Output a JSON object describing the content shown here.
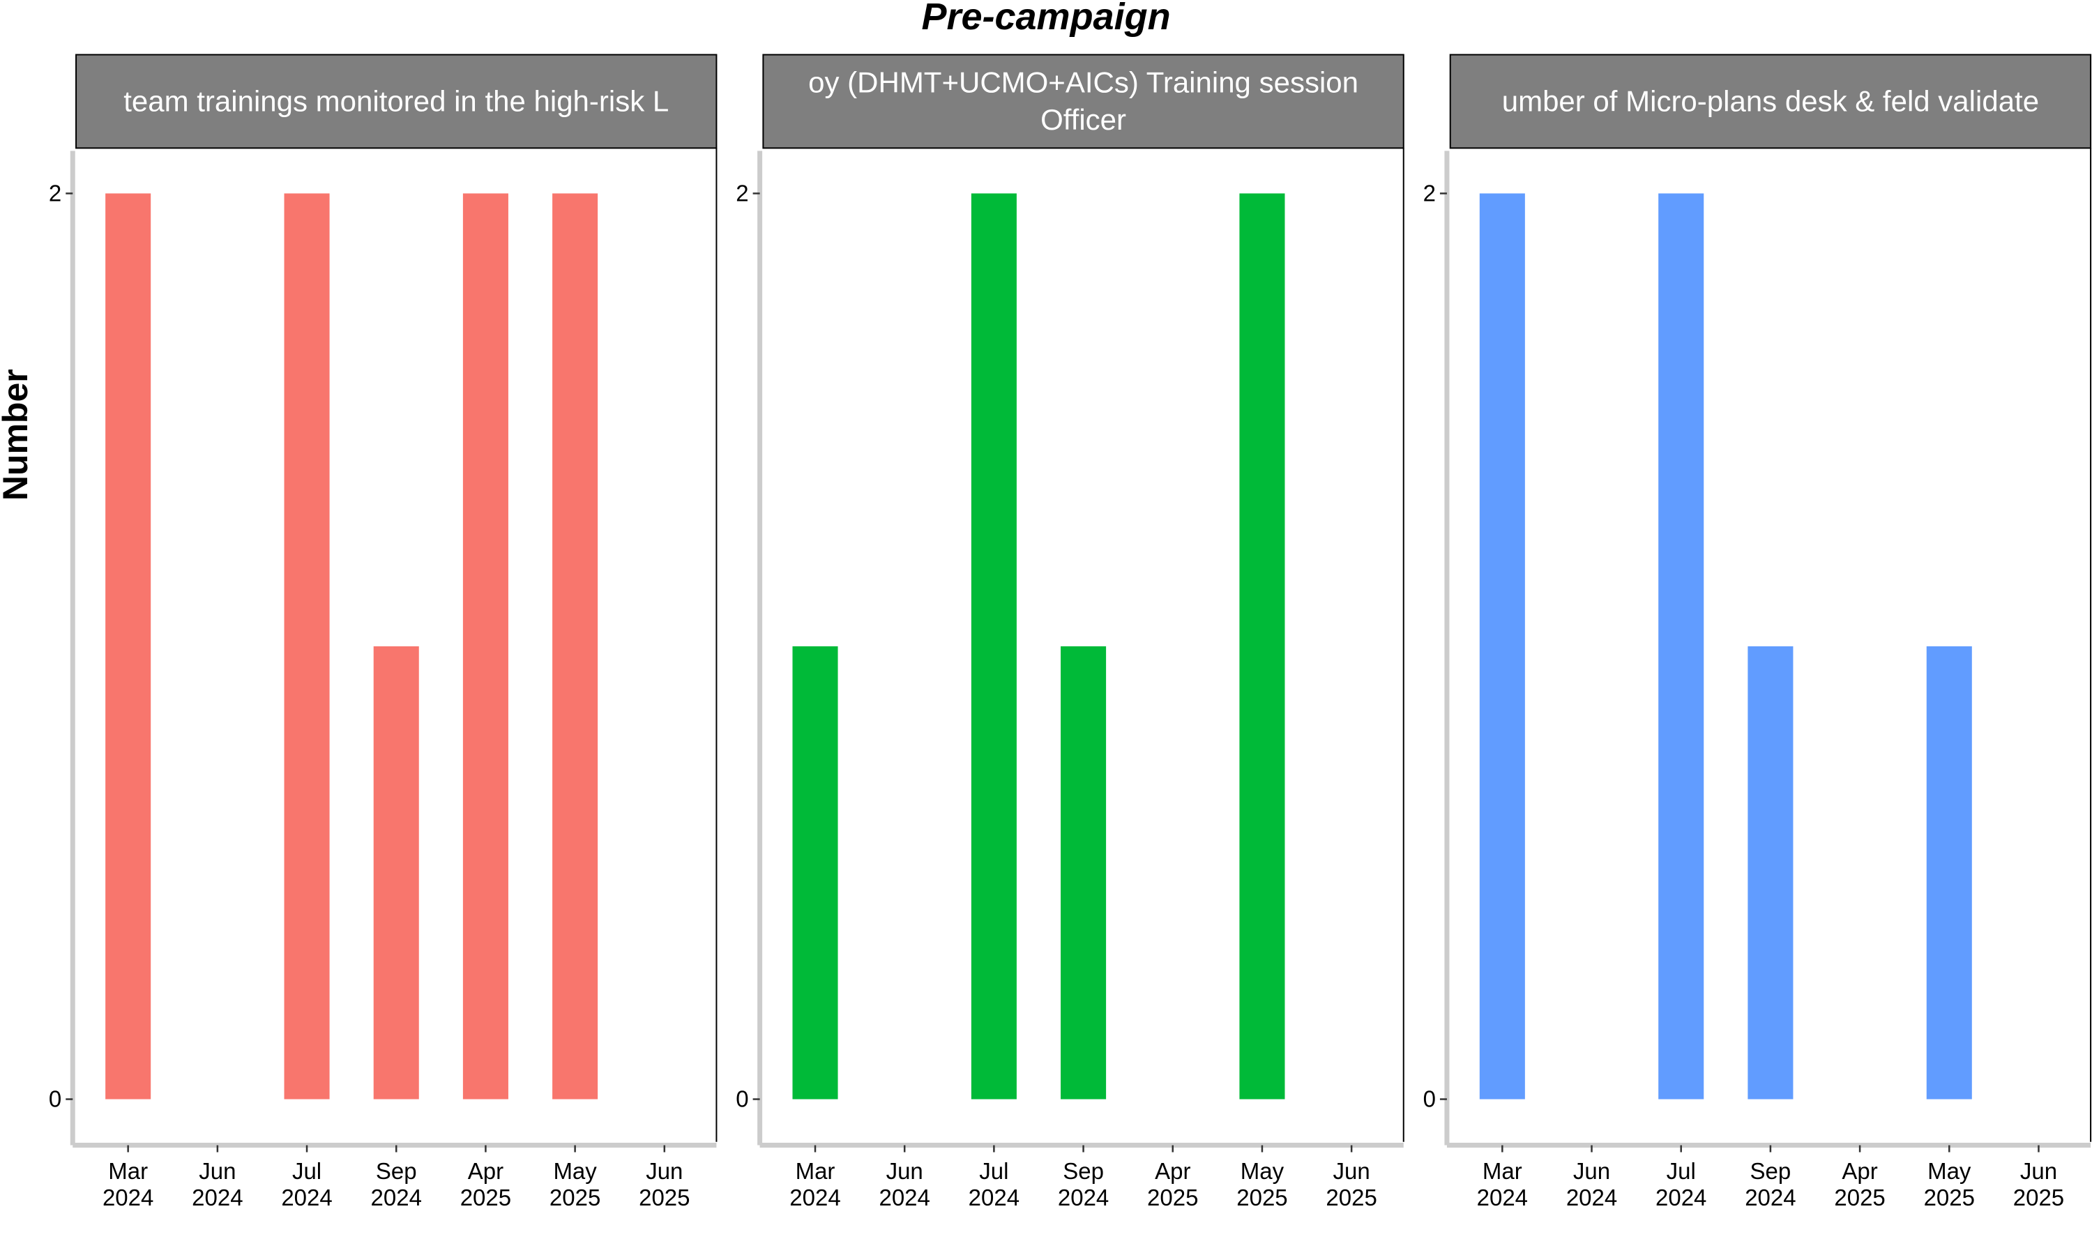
{
  "chart_data": {
    "type": "bar",
    "title": "Pre-campaign",
    "ylabel": "Number",
    "xlabel": "",
    "ylim": [
      0,
      2
    ],
    "y_ticks": [
      "0",
      "2"
    ],
    "categories": [
      [
        "Mar",
        "2024"
      ],
      [
        "Jun",
        "2024"
      ],
      [
        "Jul",
        "2024"
      ],
      [
        "Sep",
        "2024"
      ],
      [
        "Apr",
        "2025"
      ],
      [
        "May",
        "2025"
      ],
      [
        "Jun",
        "2025"
      ]
    ],
    "grid": false,
    "legend": "none",
    "panels": [
      {
        "strip_lines": [
          "team trainings monitored in the high-risk L"
        ],
        "color": "#F8766D",
        "values": [
          2,
          0,
          2,
          1,
          2,
          2,
          0
        ]
      },
      {
        "strip_lines": [
          "oy (DHMT+UCMO+AICs) Training session",
          "Officer"
        ],
        "color": "#00BA38",
        "values": [
          1,
          0,
          2,
          1,
          0,
          2,
          0
        ]
      },
      {
        "strip_lines": [
          "umber of Micro-plans desk & feld validate"
        ],
        "color": "#619CFF",
        "values": [
          2,
          0,
          2,
          1,
          0,
          1,
          0
        ]
      }
    ]
  }
}
